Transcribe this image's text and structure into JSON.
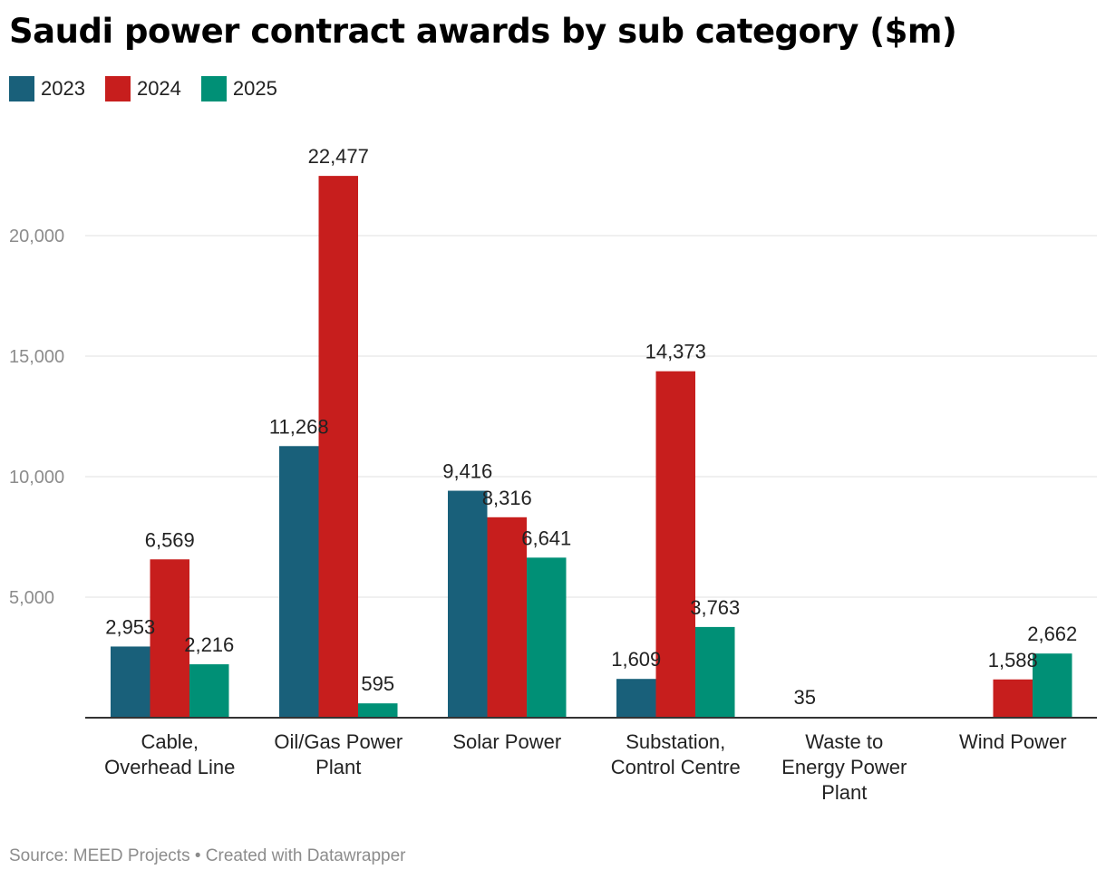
{
  "header": {
    "title": "Saudi power contract awards by sub category ($m)"
  },
  "legend": {
    "items": [
      {
        "label": "2023",
        "color": "#19607a"
      },
      {
        "label": "2024",
        "color": "#c71e1d"
      },
      {
        "label": "2025",
        "color": "#009076"
      }
    ]
  },
  "footer": {
    "source": "Source: MEED Projects • Created with Datawrapper"
  },
  "chart_data": {
    "type": "bar",
    "title": "Saudi power contract awards by sub category ($m)",
    "xlabel": "",
    "ylabel": "",
    "categories": [
      [
        "Cable,",
        "Overhead Line"
      ],
      [
        "Oil/Gas Power",
        "Plant"
      ],
      [
        "Solar Power"
      ],
      [
        "Substation,",
        "Control Centre"
      ],
      [
        "Waste to",
        "Energy Power",
        "Plant"
      ],
      [
        "Wind Power"
      ]
    ],
    "series": [
      {
        "name": "2023",
        "color": "#19607a",
        "values": [
          2953,
          11268,
          9416,
          1609,
          35,
          null
        ]
      },
      {
        "name": "2024",
        "color": "#c71e1d",
        "values": [
          6569,
          22477,
          8316,
          14373,
          null,
          1588
        ]
      },
      {
        "name": "2025",
        "color": "#009076",
        "values": [
          2216,
          595,
          6641,
          3763,
          null,
          2662
        ]
      }
    ],
    "ylim": [
      0,
      22477
    ],
    "yticks": [
      5000,
      10000,
      15000,
      20000
    ],
    "ytick_labels": [
      "5,000",
      "10,000",
      "15,000",
      "20,000"
    ],
    "grid": true,
    "legend_position": "top-left",
    "value_labels": true
  }
}
